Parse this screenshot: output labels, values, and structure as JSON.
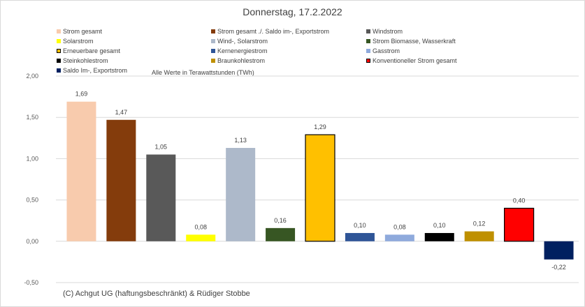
{
  "chart_data": {
    "type": "bar",
    "title": "Donnerstag, 17.2.2022",
    "annotation": "Alle Werte in Terawattstunden (TWh)",
    "credit": "(C) Achgut UG (haftungsbeschränkt) & Rüdiger Stobbe",
    "ylim": [
      -0.5,
      2.0
    ],
    "yticks": [
      "-0,50",
      "0,00",
      "0,50",
      "1,00",
      "1,50",
      "2,00"
    ],
    "ytick_values": [
      -0.5,
      0,
      0.5,
      1.0,
      1.5,
      2.0
    ],
    "grid": true,
    "legend_position": "top",
    "series": [
      {
        "name": "Strom gesamt",
        "value": 1.69,
        "label": "1,69",
        "color": "#f8cbad",
        "border": "#f8cbad"
      },
      {
        "name": "Strom gesamt ./. Saldo im-, Exportstrom",
        "value": 1.47,
        "label": "1,47",
        "color": "#843c0c",
        "border": "#843c0c"
      },
      {
        "name": "Windstrom",
        "value": 1.05,
        "label": "1,05",
        "color": "#595959",
        "border": "#595959"
      },
      {
        "name": "Solarstrom",
        "value": 0.08,
        "label": "0,08",
        "color": "#ffff00",
        "border": "#ffff00"
      },
      {
        "name": "Wind-, Solarstrom",
        "value": 1.13,
        "label": "1,13",
        "color": "#adb9ca",
        "border": "#adb9ca"
      },
      {
        "name": "Strom Biomasse, Wasserkraft",
        "value": 0.16,
        "label": "0,16",
        "color": "#375623",
        "border": "#375623"
      },
      {
        "name": "Erneuerbare gesamt",
        "value": 1.29,
        "label": "1,29",
        "color": "#ffc000",
        "border": "#000000"
      },
      {
        "name": "Kernenergiestrom",
        "value": 0.1,
        "label": "0,10",
        "color": "#2f5597",
        "border": "#2f5597"
      },
      {
        "name": "Gasstrom",
        "value": 0.08,
        "label": "0,08",
        "color": "#8faadc",
        "border": "#8faadc"
      },
      {
        "name": "Steinkohlestrom",
        "value": 0.1,
        "label": "0,10",
        "color": "#000000",
        "border": "#000000"
      },
      {
        "name": "Braunkohlestrom",
        "value": 0.12,
        "label": "0,12",
        "color": "#bf9000",
        "border": "#bf9000"
      },
      {
        "name": "Konventioneller Strom gesamt",
        "value": 0.4,
        "label": "0,40",
        "color": "#ff0000",
        "border": "#000000"
      },
      {
        "name": "Saldo Im-, Exportstrom",
        "value": -0.22,
        "label": "-0,22",
        "color": "#002060",
        "border": "#002060"
      }
    ]
  }
}
